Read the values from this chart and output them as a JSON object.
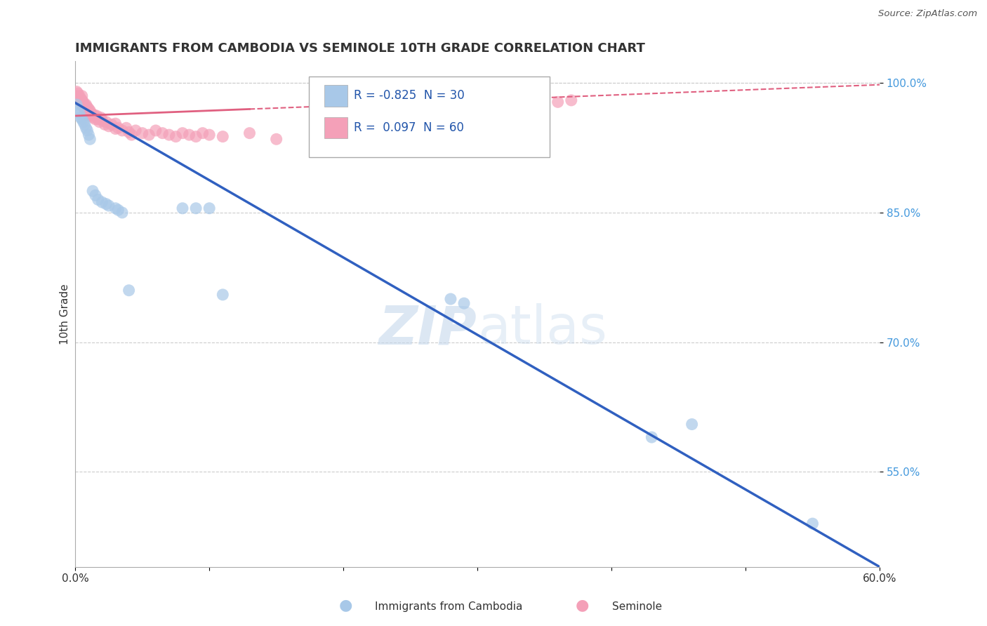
{
  "title": "IMMIGRANTS FROM CAMBODIA VS SEMINOLE 10TH GRADE CORRELATION CHART",
  "source": "Source: ZipAtlas.com",
  "xlabel_legend1": "Immigrants from Cambodia",
  "xlabel_legend2": "Seminole",
  "ylabel": "10th Grade",
  "R1": -0.825,
  "N1": 30,
  "R2": 0.097,
  "N2": 60,
  "color1": "#a8c8e8",
  "color2": "#f4a0b8",
  "line_color1": "#3060c0",
  "line_color2": "#e06080",
  "watermark_color": "#c5d8ec",
  "xlim": [
    0.0,
    0.6
  ],
  "ylim": [
    0.44,
    1.025
  ],
  "yticks": [
    0.55,
    0.7,
    0.85,
    1.0
  ],
  "ytick_labels": [
    "55.0%",
    "70.0%",
    "85.0%",
    "100.0%"
  ],
  "xticks": [
    0.0,
    0.1,
    0.2,
    0.3,
    0.4,
    0.5,
    0.6
  ],
  "xtick_labels": [
    "0.0%",
    "",
    "",
    "",
    "",
    "",
    "60.0%"
  ],
  "grid_color": "#cccccc",
  "background_color": "#ffffff",
  "title_fontsize": 13,
  "axis_label_fontsize": 11,
  "tick_fontsize": 11,
  "blue_dots_x": [
    0.001,
    0.002,
    0.003,
    0.004,
    0.005,
    0.006,
    0.007,
    0.008,
    0.009,
    0.01,
    0.011,
    0.013,
    0.015,
    0.017,
    0.02,
    0.023,
    0.025,
    0.03,
    0.032,
    0.035,
    0.04,
    0.08,
    0.09,
    0.1,
    0.11,
    0.28,
    0.29,
    0.43,
    0.46,
    0.55
  ],
  "blue_dots_y": [
    0.975,
    0.97,
    0.965,
    0.96,
    0.958,
    0.955,
    0.952,
    0.948,
    0.945,
    0.94,
    0.935,
    0.875,
    0.87,
    0.865,
    0.862,
    0.86,
    0.858,
    0.855,
    0.853,
    0.85,
    0.76,
    0.855,
    0.855,
    0.855,
    0.755,
    0.75,
    0.745,
    0.59,
    0.605,
    0.49
  ],
  "pink_dots_x": [
    0.001,
    0.001,
    0.002,
    0.002,
    0.003,
    0.003,
    0.004,
    0.004,
    0.005,
    0.005,
    0.005,
    0.006,
    0.006,
    0.007,
    0.007,
    0.008,
    0.008,
    0.009,
    0.009,
    0.01,
    0.01,
    0.011,
    0.012,
    0.012,
    0.013,
    0.014,
    0.015,
    0.016,
    0.017,
    0.018,
    0.019,
    0.02,
    0.022,
    0.023,
    0.025,
    0.027,
    0.03,
    0.03,
    0.032,
    0.035,
    0.038,
    0.04,
    0.042,
    0.045,
    0.05,
    0.055,
    0.06,
    0.065,
    0.07,
    0.075,
    0.08,
    0.085,
    0.09,
    0.095,
    0.1,
    0.11,
    0.13,
    0.15,
    0.36,
    0.37
  ],
  "pink_dots_y": [
    0.99,
    0.985,
    0.988,
    0.982,
    0.985,
    0.98,
    0.982,
    0.978,
    0.985,
    0.98,
    0.975,
    0.978,
    0.972,
    0.975,
    0.97,
    0.975,
    0.968,
    0.972,
    0.965,
    0.97,
    0.962,
    0.968,
    0.962,
    0.965,
    0.96,
    0.963,
    0.958,
    0.962,
    0.958,
    0.955,
    0.96,
    0.957,
    0.952,
    0.955,
    0.95,
    0.952,
    0.947,
    0.953,
    0.948,
    0.945,
    0.948,
    0.943,
    0.94,
    0.945,
    0.942,
    0.94,
    0.945,
    0.942,
    0.94,
    0.938,
    0.942,
    0.94,
    0.938,
    0.942,
    0.94,
    0.938,
    0.942,
    0.935,
    0.978,
    0.98
  ],
  "blue_line_x0": 0.0,
  "blue_line_y0": 0.977,
  "blue_line_x1": 0.6,
  "blue_line_y1": 0.44,
  "pink_line_x0": 0.0,
  "pink_line_y0": 0.962,
  "pink_line_x1": 0.6,
  "pink_line_y1": 0.998
}
